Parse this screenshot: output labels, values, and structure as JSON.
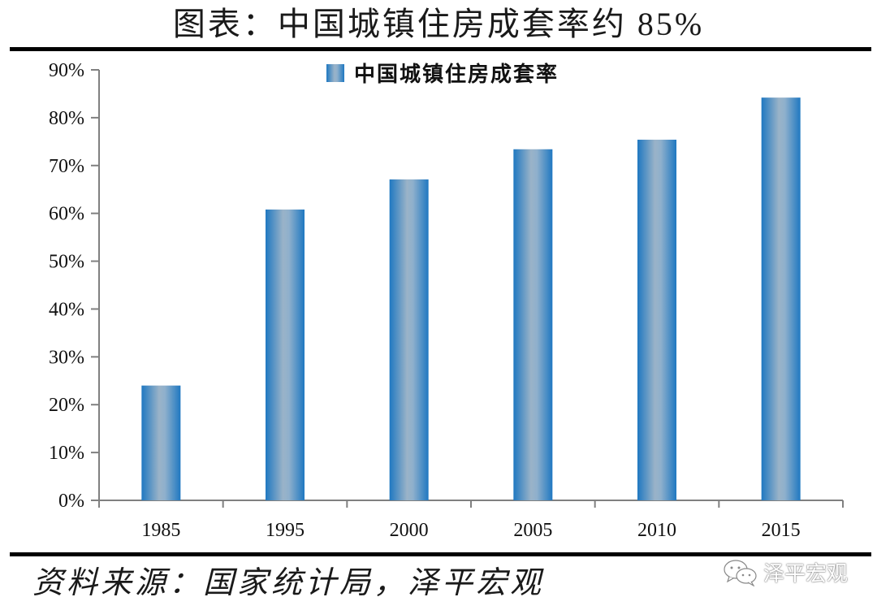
{
  "title": "图表：中国城镇住房成套率约 85%",
  "footer": {
    "source": "资料来源：国家统计局，泽平宏观",
    "watermark": "泽平宏观",
    "watermark_icon": "wechat-icon"
  },
  "colors": {
    "bar_edge": "#1f78c1",
    "bar_center": "#9ab3c8",
    "axis": "#808080",
    "rule": "#000000"
  },
  "chart_data": {
    "type": "bar",
    "title": "图表：中国城镇住房成套率约 85%",
    "categories": [
      "1985",
      "1995",
      "2000",
      "2005",
      "2010",
      "2015"
    ],
    "series": [
      {
        "name": "中国城镇住房成套率",
        "values": [
          24.0,
          60.8,
          67.1,
          73.4,
          75.4,
          84.2
        ]
      }
    ],
    "values": [
      24.0,
      60.8,
      67.1,
      73.4,
      75.4,
      84.2
    ],
    "xlabel": "",
    "ylabel": "",
    "ylim": [
      0,
      90
    ],
    "yticks": [
      "0%",
      "10%",
      "20%",
      "30%",
      "40%",
      "50%",
      "60%",
      "70%",
      "80%",
      "90%"
    ],
    "legend": {
      "position": "top-center",
      "entries": [
        "中国城镇住房成套率"
      ]
    },
    "grid": false,
    "unit": "%"
  }
}
